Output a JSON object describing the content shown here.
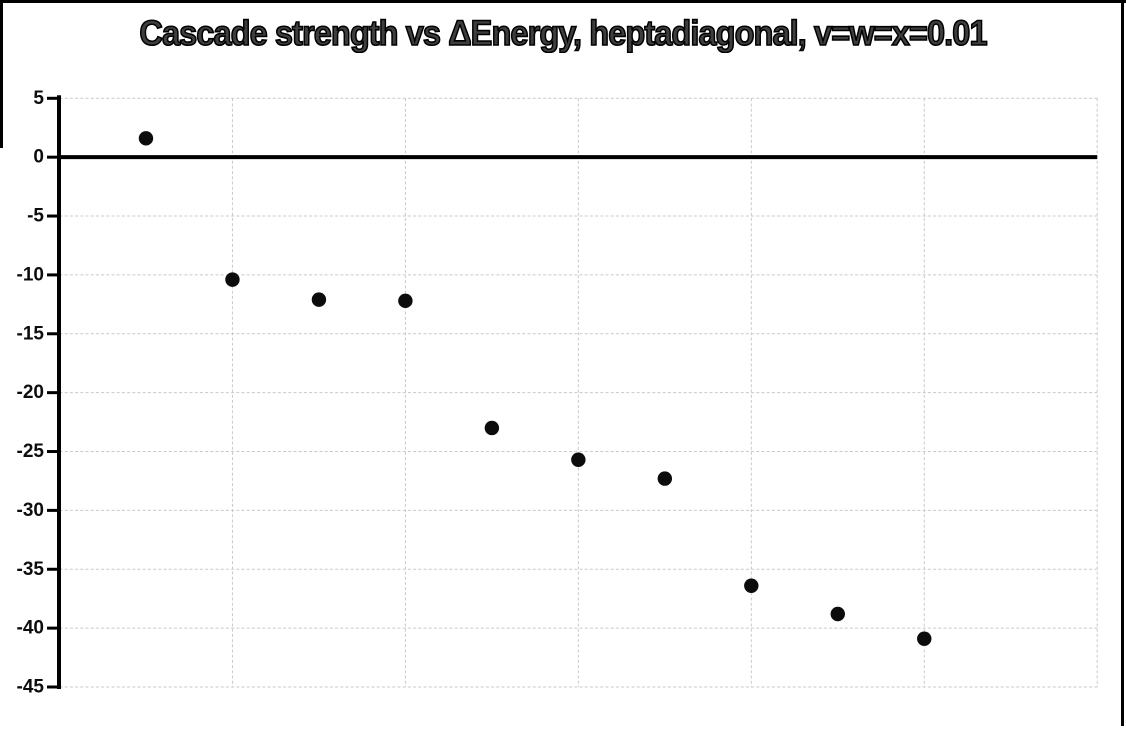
{
  "title": "Cascade strength vs ΔEnergy, heptadiagonal, v=w=x=0.01",
  "colors": {
    "background": "#ffffff",
    "frame_border": "#000000",
    "gridline": "#c9c9c9",
    "axis_line": "#000000",
    "zero_line": "#000000",
    "marker": "#0c0c0c",
    "title_fill": "#3e3e3e",
    "title_outline": "#000000",
    "tick_label": "#0d0d0d"
  },
  "chart_data": {
    "type": "scatter",
    "title": "Cascade strength vs ΔEnergy, heptadiagonal, v=w=x=0.01",
    "xlabel": "",
    "ylabel": "",
    "x": [
      1,
      2,
      3,
      4,
      5,
      6,
      7,
      8,
      9,
      10
    ],
    "y": [
      1.6,
      -10.4,
      -12.1,
      -12.2,
      -23.0,
      -25.7,
      -27.3,
      -36.4,
      -38.8,
      -40.9
    ],
    "xlim": [
      0,
      12
    ],
    "ylim": [
      -45,
      5
    ],
    "y_ticks": [
      5,
      0,
      -5,
      -10,
      -15,
      -20,
      -25,
      -30,
      -35,
      -40,
      -45
    ],
    "x_gridlines": [
      2,
      4,
      6,
      8,
      10,
      12
    ],
    "x_tick_labels_visible": false,
    "grid": true,
    "legend_position": "none",
    "marker": "filled-circle",
    "marker_color": "#0c0c0c",
    "zero_baseline": true
  }
}
